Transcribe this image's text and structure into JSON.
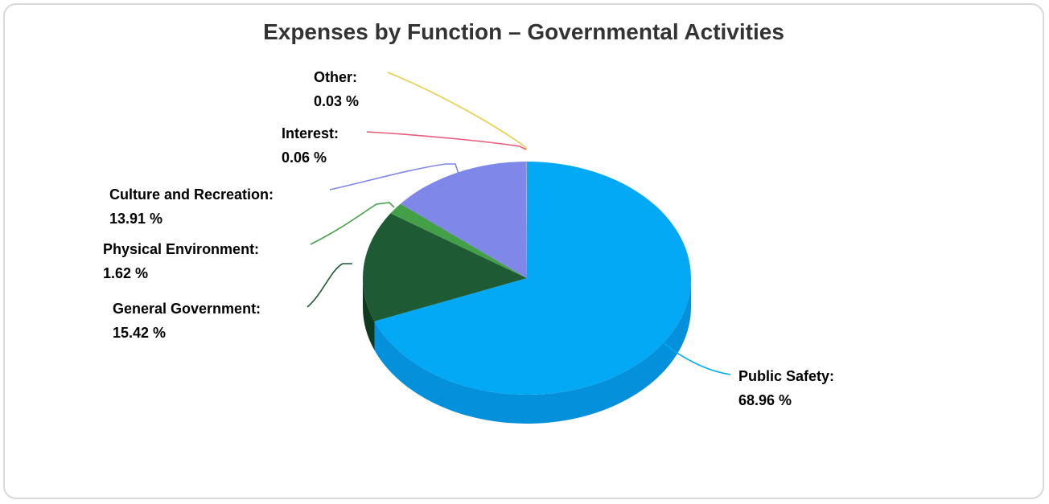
{
  "chart_data": {
    "type": "pie",
    "title": "Expenses by Function – Governmental Activities",
    "three_d": true,
    "slices": [
      {
        "label": "Public Safety",
        "value": 68.96,
        "display_value": "68.96 %",
        "color": "#03a9f4",
        "side_color": "#0490da"
      },
      {
        "label": "General Government",
        "value": 15.42,
        "display_value": "15.42 %",
        "color": "#1e5a34",
        "side_color": "#0f3a1f"
      },
      {
        "label": "Physical Environment",
        "value": 1.62,
        "display_value": "1.62 %",
        "color": "#43a047",
        "side_color": "#2e7d32"
      },
      {
        "label": "Culture and Recreation",
        "value": 13.91,
        "display_value": "13.91 %",
        "color": "#7f87e8",
        "side_color": "#5c63c7"
      },
      {
        "label": "Interest",
        "value": 0.06,
        "display_value": "0.06 %",
        "color": "#e85a7a",
        "side_color": "#c43e5e"
      },
      {
        "label": "Other",
        "value": 0.03,
        "display_value": "0.03 %",
        "color": "#e6d04a",
        "side_color": "#c4ad2e"
      }
    ]
  }
}
